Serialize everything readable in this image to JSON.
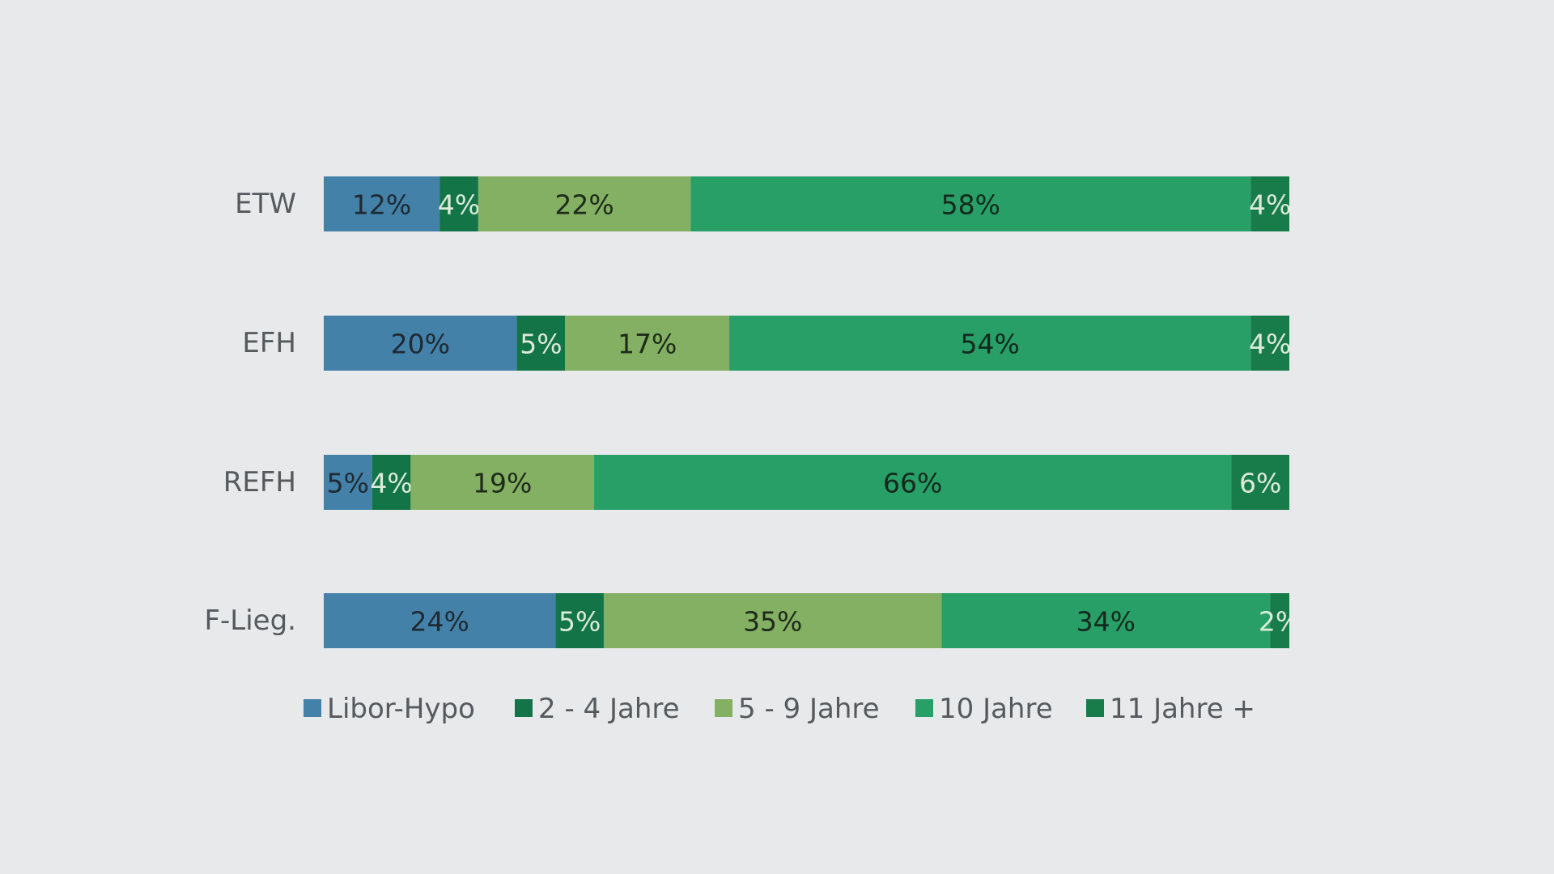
{
  "colors": {
    "background": "#e8e9eb",
    "libor": "#4381a8",
    "y2to4": "#137447",
    "y5to9": "#83b063",
    "y10": "#289f67",
    "y11plus": "#177b4a"
  },
  "chart_data": {
    "type": "bar",
    "orientation": "horizontal",
    "stacked": true,
    "title": "",
    "xlabel": "",
    "ylabel": "",
    "xlim": [
      0,
      100
    ],
    "grid": false,
    "legend_position": "bottom",
    "categories": [
      "ETW",
      "EFH",
      "REFH",
      "F-Lieg."
    ],
    "series": [
      {
        "name": "Libor-Hypo",
        "color": "#4381a8",
        "label_color": "#1f2a33",
        "values": [
          12,
          20,
          5,
          24
        ],
        "labels": [
          "12%",
          "20%",
          "5%",
          "24%"
        ]
      },
      {
        "name": "2 - 4 Jahre",
        "color": "#137447",
        "label_color": "#dcead8",
        "values": [
          4,
          5,
          4,
          5
        ],
        "labels": [
          "4%",
          "5%",
          "4%",
          "5%"
        ]
      },
      {
        "name": "5 - 9 Jahre",
        "color": "#83b063",
        "label_color": "#1f2a1b",
        "values": [
          22,
          17,
          19,
          35
        ],
        "labels": [
          "22%",
          "17%",
          "19%",
          "35%"
        ]
      },
      {
        "name": "10 Jahre",
        "color": "#289f67",
        "label_color": "#14291d",
        "values": [
          58,
          54,
          66,
          34
        ],
        "labels": [
          "58%",
          "54%",
          "66%",
          "34%"
        ]
      },
      {
        "name": "11 Jahre +",
        "color": "#177b4a",
        "label_color": "#dcead8",
        "values": [
          4,
          4,
          6,
          2
        ],
        "labels": [
          "4%",
          "4%",
          "6%",
          "2%"
        ]
      }
    ]
  }
}
